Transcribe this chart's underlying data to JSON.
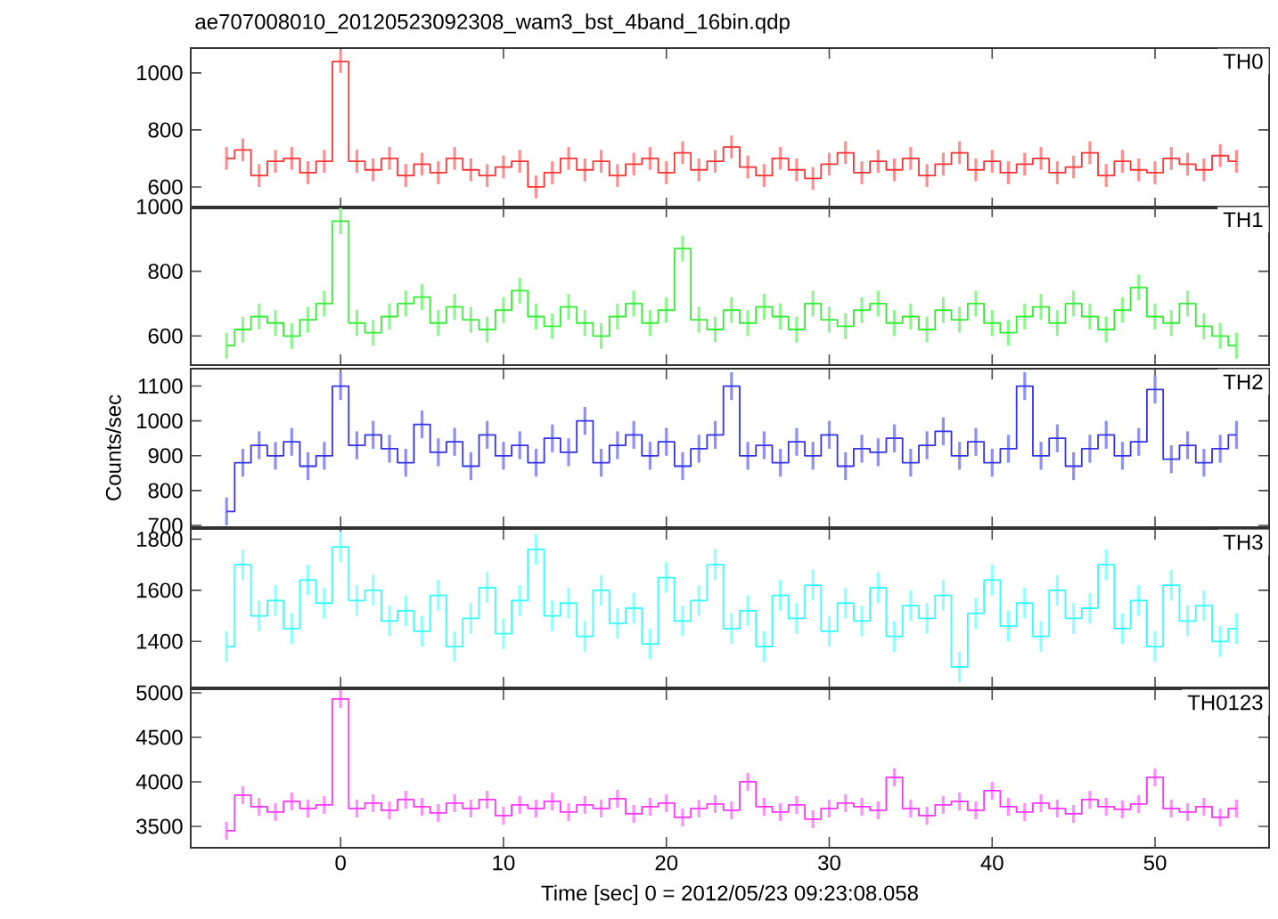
{
  "chart_data": [
    {
      "type": "step",
      "title": "ae707008010_20120523092308_wam3_bst_4band_16bin.qdp",
      "xlim": [
        -9.2,
        57
      ],
      "xticks": [
        0,
        10,
        20,
        30,
        40,
        50
      ],
      "ylim": [
        525,
        1087
      ],
      "yticks": [
        600,
        800,
        1000
      ],
      "tick_labels": "y",
      "x": [
        -7,
        -6,
        -5,
        -4,
        -3,
        -2,
        -1,
        0,
        1,
        2,
        3,
        4,
        5,
        6,
        7,
        8,
        9,
        10,
        11,
        12,
        13,
        14,
        15,
        16,
        17,
        18,
        19,
        20,
        21,
        22,
        23,
        24,
        25,
        26,
        27,
        28,
        29,
        30,
        31,
        32,
        33,
        34,
        35,
        36,
        37,
        38,
        39,
        40,
        41,
        42,
        43,
        44,
        45,
        46,
        47,
        48,
        49,
        50,
        51,
        52,
        53,
        54,
        55
      ],
      "series": [
        {
          "name": "TH0",
          "color": "#ff3333",
          "values": [
            700,
            730,
            640,
            690,
            700,
            650,
            690,
            1040,
            690,
            660,
            700,
            640,
            680,
            650,
            700,
            660,
            640,
            670,
            690,
            600,
            650,
            700,
            660,
            690,
            640,
            680,
            700,
            650,
            720,
            660,
            690,
            740,
            670,
            640,
            700,
            660,
            630,
            680,
            720,
            650,
            690,
            660,
            700,
            640,
            680,
            720,
            660,
            690,
            650,
            680,
            700,
            650,
            670,
            720,
            640,
            690,
            660,
            650,
            700,
            680,
            660,
            710,
            690
          ],
          "errors": [
            40,
            40,
            40,
            40,
            40,
            40,
            40,
            40,
            40,
            40,
            40,
            40,
            40,
            40,
            40,
            40,
            40,
            40,
            40,
            40,
            40,
            40,
            40,
            40,
            40,
            40,
            40,
            40,
            40,
            40,
            40,
            40,
            40,
            40,
            40,
            40,
            40,
            40,
            40,
            40,
            40,
            40,
            40,
            40,
            40,
            40,
            40,
            40,
            40,
            40,
            40,
            40,
            40,
            40,
            40,
            40,
            40,
            40,
            40,
            40,
            40,
            40,
            40
          ]
        }
      ]
    },
    {
      "type": "step",
      "xlim": [
        -9.2,
        57
      ],
      "xticks": [
        0,
        10,
        20,
        30,
        40,
        50
      ],
      "ylim": [
        510,
        1000
      ],
      "yticks": [
        600,
        800,
        1000
      ],
      "tick_labels": "y",
      "x": [
        -7,
        -6,
        -5,
        -4,
        -3,
        -2,
        -1,
        0,
        1,
        2,
        3,
        4,
        5,
        6,
        7,
        8,
        9,
        10,
        11,
        12,
        13,
        14,
        15,
        16,
        17,
        18,
        19,
        20,
        21,
        22,
        23,
        24,
        25,
        26,
        27,
        28,
        29,
        30,
        31,
        32,
        33,
        34,
        35,
        36,
        37,
        38,
        39,
        40,
        41,
        42,
        43,
        44,
        45,
        46,
        47,
        48,
        49,
        50,
        51,
        52,
        53,
        54,
        55
      ],
      "series": [
        {
          "name": "TH1",
          "color": "#33ee33",
          "values": [
            570,
            620,
            660,
            640,
            600,
            650,
            700,
            955,
            640,
            610,
            660,
            700,
            720,
            640,
            690,
            650,
            620,
            680,
            740,
            660,
            630,
            690,
            640,
            600,
            660,
            700,
            640,
            680,
            870,
            650,
            620,
            680,
            640,
            690,
            660,
            620,
            700,
            650,
            630,
            680,
            700,
            640,
            660,
            620,
            680,
            650,
            700,
            640,
            610,
            660,
            690,
            640,
            700,
            660,
            620,
            680,
            750,
            660,
            640,
            700,
            630,
            600,
            570
          ],
          "errors": [
            40,
            40,
            40,
            40,
            40,
            40,
            40,
            40,
            40,
            40,
            40,
            40,
            40,
            40,
            40,
            40,
            40,
            40,
            40,
            40,
            40,
            40,
            40,
            40,
            40,
            40,
            40,
            40,
            40,
            40,
            40,
            40,
            40,
            40,
            40,
            40,
            40,
            40,
            40,
            40,
            40,
            40,
            40,
            40,
            40,
            40,
            40,
            40,
            40,
            40,
            40,
            40,
            40,
            40,
            40,
            40,
            40,
            40,
            40,
            40,
            40,
            40,
            40
          ]
        }
      ]
    },
    {
      "type": "step",
      "xlim": [
        -9.2,
        57
      ],
      "xticks": [
        0,
        10,
        20,
        30,
        40,
        50
      ],
      "ylim": [
        695,
        1150
      ],
      "yticks": [
        700,
        800,
        900,
        1000,
        1100
      ],
      "tick_labels": "y",
      "ylabel": "Counts/sec",
      "x": [
        -7,
        -6,
        -5,
        -4,
        -3,
        -2,
        -1,
        0,
        1,
        2,
        3,
        4,
        5,
        6,
        7,
        8,
        9,
        10,
        11,
        12,
        13,
        14,
        15,
        16,
        17,
        18,
        19,
        20,
        21,
        22,
        23,
        24,
        25,
        26,
        27,
        28,
        29,
        30,
        31,
        32,
        33,
        34,
        35,
        36,
        37,
        38,
        39,
        40,
        41,
        42,
        43,
        44,
        45,
        46,
        47,
        48,
        49,
        50,
        51,
        52,
        53,
        54,
        55
      ],
      "series": [
        {
          "name": "TH2",
          "color": "#3333ee",
          "values": [
            740,
            880,
            930,
            900,
            940,
            870,
            900,
            1100,
            930,
            960,
            920,
            880,
            990,
            910,
            940,
            870,
            960,
            900,
            930,
            880,
            950,
            910,
            1000,
            880,
            930,
            960,
            900,
            940,
            870,
            920,
            960,
            1100,
            900,
            930,
            880,
            940,
            900,
            960,
            870,
            920,
            910,
            950,
            880,
            930,
            970,
            900,
            940,
            880,
            920,
            1100,
            900,
            950,
            870,
            920,
            960,
            900,
            940,
            1090,
            890,
            930,
            880,
            920,
            960
          ],
          "errors": [
            40,
            40,
            40,
            40,
            40,
            40,
            40,
            40,
            40,
            40,
            40,
            40,
            40,
            40,
            40,
            40,
            40,
            40,
            40,
            40,
            40,
            40,
            40,
            40,
            40,
            40,
            40,
            40,
            40,
            40,
            40,
            40,
            40,
            40,
            40,
            40,
            40,
            40,
            40,
            40,
            40,
            40,
            40,
            40,
            40,
            40,
            40,
            40,
            40,
            40,
            40,
            40,
            40,
            40,
            40,
            40,
            40,
            40,
            40,
            40,
            40,
            40,
            40
          ]
        }
      ]
    },
    {
      "type": "step",
      "xlim": [
        -9.2,
        57
      ],
      "xticks": [
        0,
        10,
        20,
        30,
        40,
        50
      ],
      "ylim": [
        1220,
        1840
      ],
      "yticks": [
        1400,
        1600,
        1800
      ],
      "tick_labels": "y",
      "x": [
        -7,
        -6,
        -5,
        -4,
        -3,
        -2,
        -1,
        0,
        1,
        2,
        3,
        4,
        5,
        6,
        7,
        8,
        9,
        10,
        11,
        12,
        13,
        14,
        15,
        16,
        17,
        18,
        19,
        20,
        21,
        22,
        23,
        24,
        25,
        26,
        27,
        28,
        29,
        30,
        31,
        32,
        33,
        34,
        35,
        36,
        37,
        38,
        39,
        40,
        41,
        42,
        43,
        44,
        45,
        46,
        47,
        48,
        49,
        50,
        51,
        52,
        53,
        54,
        55
      ],
      "series": [
        {
          "name": "TH3",
          "color": "#33ffff",
          "values": [
            1380,
            1700,
            1500,
            1560,
            1450,
            1640,
            1550,
            1770,
            1560,
            1600,
            1480,
            1520,
            1440,
            1580,
            1380,
            1490,
            1610,
            1430,
            1560,
            1760,
            1500,
            1550,
            1420,
            1600,
            1470,
            1530,
            1390,
            1650,
            1480,
            1560,
            1700,
            1450,
            1520,
            1380,
            1580,
            1490,
            1620,
            1440,
            1550,
            1480,
            1610,
            1420,
            1540,
            1490,
            1580,
            1300,
            1510,
            1640,
            1460,
            1550,
            1420,
            1600,
            1490,
            1530,
            1700,
            1450,
            1560,
            1380,
            1620,
            1480,
            1540,
            1400,
            1450
          ],
          "errors": [
            60,
            60,
            60,
            60,
            60,
            60,
            60,
            60,
            60,
            60,
            60,
            60,
            60,
            60,
            60,
            60,
            60,
            60,
            60,
            60,
            60,
            60,
            60,
            60,
            60,
            60,
            60,
            60,
            60,
            60,
            60,
            60,
            60,
            60,
            60,
            60,
            60,
            60,
            60,
            60,
            60,
            60,
            60,
            60,
            60,
            60,
            60,
            60,
            60,
            60,
            60,
            60,
            60,
            60,
            60,
            60,
            60,
            60,
            60,
            60,
            60,
            60,
            60
          ]
        }
      ]
    },
    {
      "type": "step",
      "xlim": [
        -9.2,
        57
      ],
      "xticks": [
        0,
        10,
        20,
        30,
        40,
        50
      ],
      "ylim": [
        3260,
        5040
      ],
      "yticks": [
        3500,
        4000,
        4500,
        5000
      ],
      "xlabel": "Time [sec] 0 = 2012/05/23 09:23:08.058",
      "x": [
        -7,
        -6,
        -5,
        -4,
        -3,
        -2,
        -1,
        0,
        1,
        2,
        3,
        4,
        5,
        6,
        7,
        8,
        9,
        10,
        11,
        12,
        13,
        14,
        15,
        16,
        17,
        18,
        19,
        20,
        21,
        22,
        23,
        24,
        25,
        26,
        27,
        28,
        29,
        30,
        31,
        32,
        33,
        34,
        35,
        36,
        37,
        38,
        39,
        40,
        41,
        42,
        43,
        44,
        45,
        46,
        47,
        48,
        49,
        50,
        51,
        52,
        53,
        54,
        55
      ],
      "series": [
        {
          "name": "TH0123",
          "color": "#ff33ff",
          "values": [
            3450,
            3850,
            3720,
            3660,
            3780,
            3700,
            3740,
            4930,
            3700,
            3760,
            3680,
            3800,
            3720,
            3650,
            3760,
            3700,
            3800,
            3620,
            3740,
            3700,
            3780,
            3660,
            3740,
            3700,
            3810,
            3640,
            3720,
            3760,
            3600,
            3700,
            3750,
            3680,
            4000,
            3720,
            3660,
            3740,
            3580,
            3700,
            3760,
            3720,
            3680,
            4050,
            3700,
            3620,
            3740,
            3780,
            3680,
            3900,
            3720,
            3660,
            3760,
            3700,
            3640,
            3800,
            3720,
            3690,
            3750,
            4050,
            3700,
            3660,
            3720,
            3600,
            3700
          ],
          "errors": [
            100,
            100,
            100,
            100,
            100,
            100,
            100,
            100,
            100,
            100,
            100,
            100,
            100,
            100,
            100,
            100,
            100,
            100,
            100,
            100,
            100,
            100,
            100,
            100,
            100,
            100,
            100,
            100,
            100,
            100,
            100,
            100,
            100,
            100,
            100,
            100,
            100,
            100,
            100,
            100,
            100,
            100,
            100,
            100,
            100,
            100,
            100,
            100,
            100,
            100,
            100,
            100,
            100,
            100,
            100,
            100,
            100,
            100,
            100,
            100,
            100,
            100,
            100
          ]
        }
      ]
    }
  ]
}
